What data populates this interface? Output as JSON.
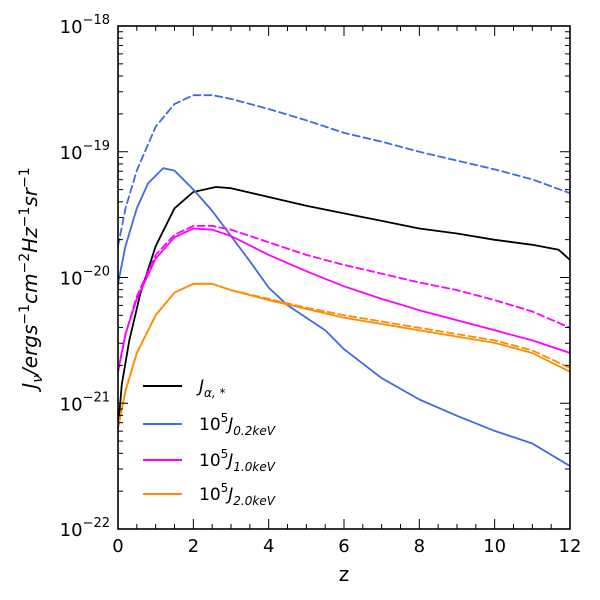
{
  "chart_data": {
    "type": "line",
    "xlabel": "z",
    "ylabel": "J_ν/ergs⁻¹cm⁻²Hz⁻¹sr⁻¹",
    "ylabel_parts": {
      "base": "J",
      "sub": "ν",
      "unit": "/ergs",
      "e1": "−1",
      "cm": "cm",
      "e2": "−2",
      "hz": "Hz",
      "e3": "−1",
      "sr": "sr",
      "e4": "−1"
    },
    "xlim": [
      0,
      12
    ],
    "ylim_exp": [
      -22,
      -18
    ],
    "y_scale": "log",
    "x_ticks": [
      0,
      2,
      4,
      6,
      8,
      10,
      12
    ],
    "x_tick_labels": [
      "0",
      "2",
      "4",
      "6",
      "8",
      "10",
      "12"
    ],
    "y_ticks_exp": [
      -22,
      -21,
      -20,
      -19,
      -18
    ],
    "y_tick_labels": [
      {
        "base": "10",
        "exp": "−22"
      },
      {
        "base": "10",
        "exp": "−21"
      },
      {
        "base": "10",
        "exp": "−20"
      },
      {
        "base": "10",
        "exp": "−19"
      },
      {
        "base": "10",
        "exp": "−18"
      }
    ],
    "legend": {
      "position": "lower-left",
      "entries": [
        {
          "key": "alpha",
          "prefix": "",
          "prefix_exp": "",
          "main": "J",
          "sub": "α, *"
        },
        {
          "key": "j02",
          "prefix": "10",
          "prefix_exp": "5",
          "main": "J",
          "sub": "0.2keV"
        },
        {
          "key": "j10",
          "prefix": "10",
          "prefix_exp": "5",
          "main": "J",
          "sub": "1.0keV"
        },
        {
          "key": "j20",
          "prefix": "10",
          "prefix_exp": "5",
          "main": "J",
          "sub": "2.0keV"
        }
      ]
    },
    "colors": {
      "alpha": "#000000",
      "j02": "#4169e1",
      "j10": "#ff00ff",
      "j20": "#ff8c00"
    },
    "series": [
      {
        "name": "J_alpha",
        "key": "alpha",
        "dash": false,
        "points": [
          [
            0,
            -21.2
          ],
          [
            0.1,
            -20.85
          ],
          [
            0.3,
            -20.5
          ],
          [
            0.6,
            -20.12
          ],
          [
            1,
            -19.75
          ],
          [
            1.5,
            -19.45
          ],
          [
            2,
            -19.32
          ],
          [
            2.6,
            -19.28
          ],
          [
            3,
            -19.29
          ],
          [
            4,
            -19.36
          ],
          [
            5,
            -19.43
          ],
          [
            6,
            -19.49
          ],
          [
            7,
            -19.55
          ],
          [
            8,
            -19.61
          ],
          [
            9,
            -19.65
          ],
          [
            10,
            -19.7
          ],
          [
            11,
            -19.74
          ],
          [
            11.7,
            -19.78
          ],
          [
            12,
            -19.86
          ]
        ]
      },
      {
        "name": "10^5 J_0.2keV",
        "key": "j02",
        "dash": false,
        "points": [
          [
            0,
            -20.05
          ],
          [
            0.2,
            -19.75
          ],
          [
            0.5,
            -19.45
          ],
          [
            0.8,
            -19.25
          ],
          [
            1.2,
            -19.13
          ],
          [
            1.5,
            -19.15
          ],
          [
            2,
            -19.3
          ],
          [
            2.5,
            -19.47
          ],
          [
            3,
            -19.67
          ],
          [
            3.5,
            -19.87
          ],
          [
            4,
            -20.08
          ],
          [
            4.5,
            -20.22
          ],
          [
            5,
            -20.32
          ],
          [
            5.5,
            -20.42
          ],
          [
            6,
            -20.57
          ],
          [
            7,
            -20.8
          ],
          [
            8,
            -20.97
          ],
          [
            9,
            -21.1
          ],
          [
            10,
            -21.22
          ],
          [
            11,
            -21.32
          ],
          [
            12,
            -21.5
          ]
        ]
      },
      {
        "name": "10^5 J_0.2keV (dashed)",
        "key": "j02",
        "dash": true,
        "points": [
          [
            0,
            -19.75
          ],
          [
            0.2,
            -19.45
          ],
          [
            0.5,
            -19.15
          ],
          [
            1,
            -18.8
          ],
          [
            1.5,
            -18.62
          ],
          [
            2,
            -18.55
          ],
          [
            2.5,
            -18.55
          ],
          [
            3,
            -18.58
          ],
          [
            4,
            -18.66
          ],
          [
            5,
            -18.75
          ],
          [
            6,
            -18.85
          ],
          [
            7,
            -18.92
          ],
          [
            8,
            -19
          ],
          [
            9,
            -19.07
          ],
          [
            10,
            -19.14
          ],
          [
            11,
            -19.22
          ],
          [
            12,
            -19.33
          ]
        ]
      },
      {
        "name": "10^5 J_1.0keV",
        "key": "j10",
        "dash": false,
        "points": [
          [
            0,
            -20.75
          ],
          [
            0.2,
            -20.45
          ],
          [
            0.5,
            -20.17
          ],
          [
            1,
            -19.85
          ],
          [
            1.5,
            -19.68
          ],
          [
            2,
            -19.61
          ],
          [
            2.5,
            -19.62
          ],
          [
            3,
            -19.67
          ],
          [
            4,
            -19.82
          ],
          [
            5,
            -19.95
          ],
          [
            6,
            -20.07
          ],
          [
            7,
            -20.17
          ],
          [
            8,
            -20.26
          ],
          [
            9,
            -20.34
          ],
          [
            10,
            -20.42
          ],
          [
            11,
            -20.5
          ],
          [
            12,
            -20.6
          ]
        ]
      },
      {
        "name": "10^5 J_1.0keV (dashed)",
        "key": "j10",
        "dash": true,
        "points": [
          [
            0,
            -20.75
          ],
          [
            0.2,
            -20.45
          ],
          [
            0.5,
            -20.15
          ],
          [
            1,
            -19.82
          ],
          [
            1.5,
            -19.66
          ],
          [
            2,
            -19.59
          ],
          [
            2.5,
            -19.59
          ],
          [
            3,
            -19.62
          ],
          [
            4,
            -19.72
          ],
          [
            5,
            -19.82
          ],
          [
            6,
            -19.9
          ],
          [
            7,
            -19.97
          ],
          [
            8,
            -20.04
          ],
          [
            9,
            -20.1
          ],
          [
            10,
            -20.18
          ],
          [
            11,
            -20.27
          ],
          [
            12,
            -20.4
          ]
        ]
      },
      {
        "name": "10^5 J_2.0keV",
        "key": "j20",
        "dash": false,
        "points": [
          [
            0,
            -21.2
          ],
          [
            0.2,
            -20.9
          ],
          [
            0.5,
            -20.6
          ],
          [
            1,
            -20.3
          ],
          [
            1.5,
            -20.12
          ],
          [
            2,
            -20.05
          ],
          [
            2.5,
            -20.05
          ],
          [
            3,
            -20.1
          ],
          [
            4,
            -20.18
          ],
          [
            5,
            -20.25
          ],
          [
            6,
            -20.32
          ],
          [
            7,
            -20.37
          ],
          [
            8,
            -20.42
          ],
          [
            9,
            -20.47
          ],
          [
            10,
            -20.52
          ],
          [
            11,
            -20.6
          ],
          [
            12,
            -20.75
          ]
        ]
      },
      {
        "name": "10^5 J_2.0keV (dashed)",
        "key": "j20",
        "dash": true,
        "points": [
          [
            0,
            -21.2
          ],
          [
            0.2,
            -20.9
          ],
          [
            0.5,
            -20.6
          ],
          [
            1,
            -20.3
          ],
          [
            1.5,
            -20.12
          ],
          [
            2,
            -20.05
          ],
          [
            2.5,
            -20.05
          ],
          [
            3,
            -20.1
          ],
          [
            4,
            -20.17
          ],
          [
            5,
            -20.24
          ],
          [
            6,
            -20.3
          ],
          [
            7,
            -20.35
          ],
          [
            8,
            -20.4
          ],
          [
            9,
            -20.45
          ],
          [
            10,
            -20.5
          ],
          [
            11,
            -20.58
          ],
          [
            12,
            -20.72
          ]
        ]
      }
    ]
  }
}
